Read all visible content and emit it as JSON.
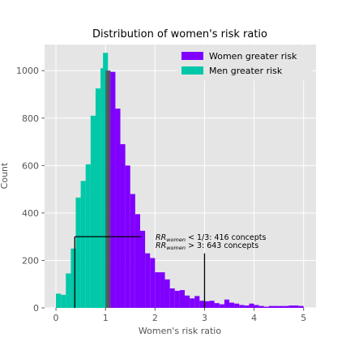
{
  "chart_data": {
    "type": "bar",
    "title": "Distribution of women's risk ratio",
    "xlabel": "Women's risk ratio",
    "ylabel": "Count",
    "xlim": [
      -0.23,
      5.25
    ],
    "ylim": [
      0,
      1110
    ],
    "xticks": [
      0,
      1,
      2,
      3,
      4,
      5
    ],
    "yticks": [
      0,
      200,
      400,
      600,
      800,
      1000
    ],
    "grid": true,
    "legend_position": "top-right",
    "bin_width": 0.1,
    "series": [
      {
        "name": "Women greater risk",
        "color": "#8000ff",
        "bins": [
          {
            "x0": 1.0,
            "value": 1000
          },
          {
            "x0": 1.1,
            "value": 995
          },
          {
            "x0": 1.2,
            "value": 840
          },
          {
            "x0": 1.3,
            "value": 690
          },
          {
            "x0": 1.4,
            "value": 600
          },
          {
            "x0": 1.5,
            "value": 480
          },
          {
            "x0": 1.6,
            "value": 395
          },
          {
            "x0": 1.7,
            "value": 325
          },
          {
            "x0": 1.8,
            "value": 230
          },
          {
            "x0": 1.9,
            "value": 210
          },
          {
            "x0": 2.0,
            "value": 150
          },
          {
            "x0": 2.1,
            "value": 150
          },
          {
            "x0": 2.2,
            "value": 120
          },
          {
            "x0": 2.3,
            "value": 82
          },
          {
            "x0": 2.4,
            "value": 72
          },
          {
            "x0": 2.5,
            "value": 75
          },
          {
            "x0": 2.6,
            "value": 52
          },
          {
            "x0": 2.7,
            "value": 40
          },
          {
            "x0": 2.8,
            "value": 50
          },
          {
            "x0": 2.9,
            "value": 30
          },
          {
            "x0": 3.0,
            "value": 28
          },
          {
            "x0": 3.1,
            "value": 30
          },
          {
            "x0": 3.2,
            "value": 20
          },
          {
            "x0": 3.3,
            "value": 15
          },
          {
            "x0": 3.4,
            "value": 35
          },
          {
            "x0": 3.5,
            "value": 22
          },
          {
            "x0": 3.6,
            "value": 18
          },
          {
            "x0": 3.7,
            "value": 12
          },
          {
            "x0": 3.8,
            "value": 10
          },
          {
            "x0": 3.9,
            "value": 18
          },
          {
            "x0": 4.0,
            "value": 12
          },
          {
            "x0": 4.1,
            "value": 8
          },
          {
            "x0": 4.2,
            "value": 5
          },
          {
            "x0": 4.3,
            "value": 8
          },
          {
            "x0": 4.4,
            "value": 8
          },
          {
            "x0": 4.5,
            "value": 8
          },
          {
            "x0": 4.6,
            "value": 8
          },
          {
            "x0": 4.7,
            "value": 10
          },
          {
            "x0": 4.8,
            "value": 10
          },
          {
            "x0": 4.9,
            "value": 8
          }
        ]
      },
      {
        "name": "Men greater risk",
        "color": "#00c8a8",
        "bins": [
          {
            "x0": 0.0,
            "value": 60
          },
          {
            "x0": 0.1,
            "value": 55
          },
          {
            "x0": 0.2,
            "value": 145
          },
          {
            "x0": 0.3,
            "value": 250
          },
          {
            "x0": 0.4,
            "value": 465
          },
          {
            "x0": 0.5,
            "value": 535
          },
          {
            "x0": 0.6,
            "value": 605
          },
          {
            "x0": 0.7,
            "value": 810
          },
          {
            "x0": 0.8,
            "value": 925
          },
          {
            "x0": 0.9,
            "value": 1010
          },
          {
            "x0": 0.95,
            "value": 1075
          }
        ]
      }
    ],
    "overlap": {
      "x0": 1.0,
      "x1": 1.1,
      "value": 1000,
      "color": "#555555"
    },
    "reference_lines": [
      {
        "type": "horizontal",
        "y": 300,
        "x_start": 0.38,
        "x_end": 1.72
      },
      {
        "type": "vertical",
        "x": 3.0,
        "y_start": 0,
        "y_end": 230
      },
      {
        "type": "vertical",
        "x": 0.38,
        "y_start": 0,
        "y_end": 300
      }
    ],
    "annotations": [
      {
        "main": "RR",
        "sub": "women",
        "rest": " < 1/3: 416 concepts",
        "x": 2.0,
        "y": 290
      },
      {
        "main": "RR",
        "sub": "women",
        "rest": " > 3: 643 concepts",
        "x": 2.0,
        "y": 255
      }
    ]
  }
}
